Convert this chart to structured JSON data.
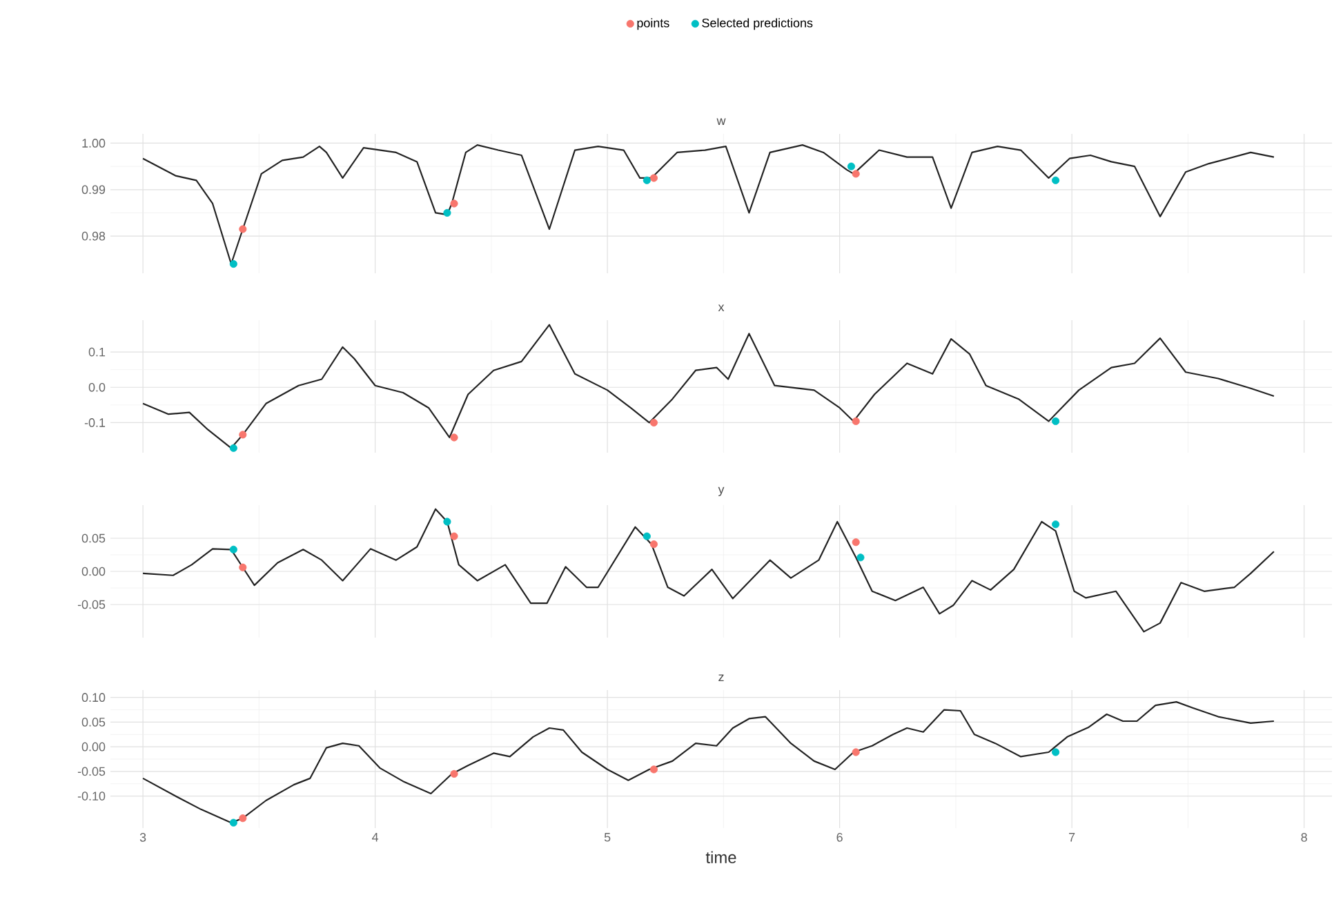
{
  "chart_data": [
    {
      "type": "line",
      "title": "w",
      "xlim": [
        2.86,
        8.12
      ],
      "ylim": [
        0.972,
        1.002
      ],
      "xticks": [
        3,
        4,
        5,
        6,
        7,
        8
      ],
      "yticks": [
        0.98,
        0.99,
        {
          "value": 1.0,
          "label": "1.00"
        }
      ],
      "grid": true,
      "legend": "top",
      "tick_labels": "y",
      "series": [
        {
          "color": "#222222",
          "x": [
            3.0,
            3.14,
            3.23,
            3.3,
            3.38,
            3.43,
            3.51,
            3.6,
            3.69,
            3.76,
            3.79,
            3.86,
            3.95,
            4.09,
            4.18,
            4.26,
            4.31,
            4.33,
            4.39,
            4.44,
            4.53,
            4.63,
            4.75,
            4.86,
            4.96,
            5.07,
            5.14,
            5.19,
            5.3,
            5.42,
            5.51,
            5.61,
            5.7,
            5.84,
            5.93,
            6.03,
            6.06,
            6.17,
            6.29,
            6.4,
            6.48,
            6.57,
            6.68,
            6.78,
            6.9,
            6.99,
            7.08,
            7.17,
            7.27,
            7.38,
            7.49,
            7.59,
            7.77,
            7.87
          ],
          "values": [
            0.9967,
            0.993,
            0.992,
            0.987,
            0.974,
            0.9815,
            0.9934,
            0.9963,
            0.997,
            0.9993,
            0.998,
            0.9925,
            0.999,
            0.998,
            0.996,
            0.985,
            0.9846,
            0.987,
            0.998,
            0.9996,
            0.9985,
            0.9974,
            0.9815,
            0.9985,
            0.9993,
            0.9985,
            0.9925,
            0.9925,
            0.998,
            0.9985,
            0.9993,
            0.985,
            0.998,
            0.9996,
            0.998,
            0.9943,
            0.9934,
            0.9985,
            0.997,
            0.997,
            0.986,
            0.998,
            0.9993,
            0.9985,
            0.9925,
            0.9967,
            0.9974,
            0.996,
            0.995,
            0.9842,
            0.9938,
            0.9956,
            0.998,
            0.997
          ]
        },
        {
          "type": "scatter",
          "name": "points",
          "color": "#f8766d",
          "x": [
            3.43,
            4.34,
            5.2,
            6.07
          ],
          "values": [
            0.9815,
            0.987,
            0.9925,
            0.9934
          ]
        },
        {
          "type": "scatter",
          "name": "Selected predictions",
          "color": "#00bfc4",
          "x": [
            3.39,
            4.31,
            5.17,
            6.05,
            6.93
          ],
          "values": [
            0.974,
            0.985,
            0.992,
            0.995,
            0.992
          ]
        }
      ]
    },
    {
      "type": "line",
      "title": "x",
      "xlim": [
        2.86,
        8.12
      ],
      "ylim": [
        -0.185,
        0.19
      ],
      "xticks": [
        3,
        4,
        5,
        6,
        7,
        8
      ],
      "yticks": [
        -0.1,
        {
          "value": 0,
          "label": "0.0"
        },
        0.1
      ],
      "grid": true,
      "tick_labels": "y",
      "series": [
        {
          "color": "#222222",
          "x": [
            3.0,
            3.11,
            3.2,
            3.28,
            3.38,
            3.43,
            3.53,
            3.67,
            3.77,
            3.86,
            3.91,
            4.0,
            4.12,
            4.23,
            4.32,
            4.4,
            4.51,
            4.63,
            4.75,
            4.86,
            5.0,
            5.1,
            5.18,
            5.28,
            5.38,
            5.47,
            5.52,
            5.61,
            5.72,
            5.89,
            6.0,
            6.06,
            6.15,
            6.29,
            6.4,
            6.48,
            6.56,
            6.63,
            6.77,
            6.9,
            7.03,
            7.17,
            7.27,
            7.38,
            7.49,
            7.63,
            7.77,
            7.87
          ],
          "values": [
            -0.046,
            -0.076,
            -0.071,
            -0.12,
            -0.172,
            -0.134,
            -0.046,
            0.005,
            0.023,
            0.114,
            0.081,
            0.005,
            -0.015,
            -0.058,
            -0.142,
            -0.02,
            0.048,
            0.073,
            0.177,
            0.038,
            -0.008,
            -0.058,
            -0.1,
            -0.033,
            0.048,
            0.056,
            0.023,
            0.152,
            0.005,
            -0.008,
            -0.058,
            -0.096,
            -0.02,
            0.068,
            0.038,
            0.137,
            0.094,
            0.005,
            -0.033,
            -0.096,
            -0.008,
            0.056,
            0.068,
            0.139,
            0.043,
            0.025,
            -0.003,
            -0.025
          ]
        },
        {
          "type": "scatter",
          "color": "#f8766d",
          "x": [
            3.43,
            4.34,
            5.2,
            6.07
          ],
          "values": [
            -0.134,
            -0.142,
            -0.1,
            -0.096
          ]
        },
        {
          "type": "scatter",
          "color": "#00bfc4",
          "x": [
            3.39,
            4.31,
            5.17,
            6.05,
            6.93
          ],
          "values": [
            -0.172,
            null,
            null,
            null,
            -0.096
          ]
        }
      ]
    },
    {
      "type": "line",
      "title": "y",
      "xlim": [
        2.86,
        8.12
      ],
      "ylim": [
        -0.1,
        0.1
      ],
      "xticks": [
        3,
        4,
        5,
        6,
        7,
        8
      ],
      "yticks": [
        -0.05,
        {
          "value": 0,
          "label": "0.00"
        },
        0.05
      ],
      "grid": true,
      "tick_labels": "y",
      "series": [
        {
          "color": "#222222",
          "x": [
            3.0,
            3.13,
            3.21,
            3.3,
            3.38,
            3.43,
            3.48,
            3.58,
            3.69,
            3.77,
            3.86,
            3.98,
            4.09,
            4.18,
            4.26,
            4.31,
            4.36,
            4.44,
            4.56,
            4.67,
            4.74,
            4.82,
            4.91,
            4.96,
            5.12,
            5.19,
            5.26,
            5.33,
            5.45,
            5.54,
            5.7,
            5.79,
            5.91,
            5.99,
            6.07,
            6.14,
            6.24,
            6.36,
            6.43,
            6.49,
            6.57,
            6.65,
            6.75,
            6.87,
            6.93,
            7.01,
            7.06,
            7.19,
            7.31,
            7.38,
            7.47,
            7.57,
            7.7,
            7.77,
            7.87
          ],
          "values": [
            -0.003,
            -0.006,
            0.01,
            0.034,
            0.033,
            0.006,
            -0.021,
            0.013,
            0.033,
            0.017,
            -0.014,
            0.034,
            0.017,
            0.037,
            0.094,
            0.075,
            0.01,
            -0.014,
            0.01,
            -0.048,
            -0.048,
            0.007,
            -0.024,
            -0.024,
            0.067,
            0.041,
            -0.024,
            -0.037,
            0.003,
            -0.041,
            0.017,
            -0.01,
            0.017,
            0.075,
            0.021,
            -0.03,
            -0.044,
            -0.024,
            -0.064,
            -0.051,
            -0.014,
            -0.028,
            0.003,
            0.075,
            0.061,
            -0.03,
            -0.04,
            -0.03,
            -0.091,
            -0.078,
            -0.017,
            -0.03,
            -0.024,
            -0.003,
            0.03
          ]
        },
        {
          "type": "scatter",
          "color": "#f8766d",
          "x": [
            3.43,
            4.34,
            5.2,
            6.07
          ],
          "values": [
            0.006,
            0.053,
            0.041,
            0.044
          ]
        },
        {
          "type": "scatter",
          "color": "#00bfc4",
          "x": [
            3.39,
            4.31,
            5.17,
            6.09,
            6.93
          ],
          "values": [
            0.033,
            0.075,
            0.053,
            0.021,
            0.071
          ]
        }
      ]
    },
    {
      "type": "line",
      "title": "z",
      "xlabel": "time",
      "xlim": [
        2.86,
        8.12
      ],
      "ylim": [
        -0.165,
        0.115
      ],
      "xticks": [
        3,
        4,
        5,
        6,
        7,
        8
      ],
      "yticks": [
        {
          "value": -0.1,
          "label": "-0.10"
        },
        -0.05,
        {
          "value": 0,
          "label": "0.00"
        },
        0.05,
        {
          "value": 0.1,
          "label": "0.10"
        }
      ],
      "grid": true,
      "series": [
        {
          "color": "#222222",
          "x": [
            3.0,
            3.14,
            3.25,
            3.38,
            3.43,
            3.53,
            3.65,
            3.72,
            3.79,
            3.86,
            3.93,
            4.02,
            4.12,
            4.24,
            4.33,
            4.4,
            4.51,
            4.58,
            4.68,
            4.75,
            4.81,
            4.89,
            5.0,
            5.09,
            5.18,
            5.28,
            5.38,
            5.47,
            5.54,
            5.61,
            5.68,
            5.79,
            5.89,
            5.98,
            6.06,
            6.14,
            6.23,
            6.29,
            6.36,
            6.45,
            6.52,
            6.58,
            6.67,
            6.78,
            6.9,
            6.98,
            7.07,
            7.15,
            7.22,
            7.28,
            7.36,
            7.45,
            7.52,
            7.63,
            7.77,
            7.87
          ],
          "values": [
            -0.064,
            -0.1,
            -0.127,
            -0.154,
            -0.145,
            -0.109,
            -0.077,
            -0.064,
            -0.002,
            0.007,
            0.002,
            -0.043,
            -0.07,
            -0.095,
            -0.055,
            -0.038,
            -0.013,
            -0.02,
            0.02,
            0.038,
            0.034,
            -0.011,
            -0.046,
            -0.068,
            -0.046,
            -0.029,
            0.007,
            0.002,
            0.038,
            0.057,
            0.061,
            0.007,
            -0.029,
            -0.046,
            -0.011,
            0.002,
            0.025,
            0.038,
            0.03,
            0.075,
            0.073,
            0.025,
            0.007,
            -0.02,
            -0.011,
            0.02,
            0.039,
            0.066,
            0.052,
            0.052,
            0.084,
            0.091,
            0.079,
            0.061,
            0.048,
            0.052
          ]
        },
        {
          "type": "scatter",
          "color": "#f8766d",
          "x": [
            3.43,
            4.34,
            5.2,
            6.07
          ],
          "values": [
            -0.145,
            -0.055,
            -0.046,
            -0.011
          ]
        },
        {
          "type": "scatter",
          "color": "#00bfc4",
          "x": [
            3.39,
            4.31,
            5.17,
            6.05,
            6.93
          ],
          "values": [
            -0.154,
            null,
            null,
            null,
            -0.011
          ]
        }
      ]
    }
  ]
}
